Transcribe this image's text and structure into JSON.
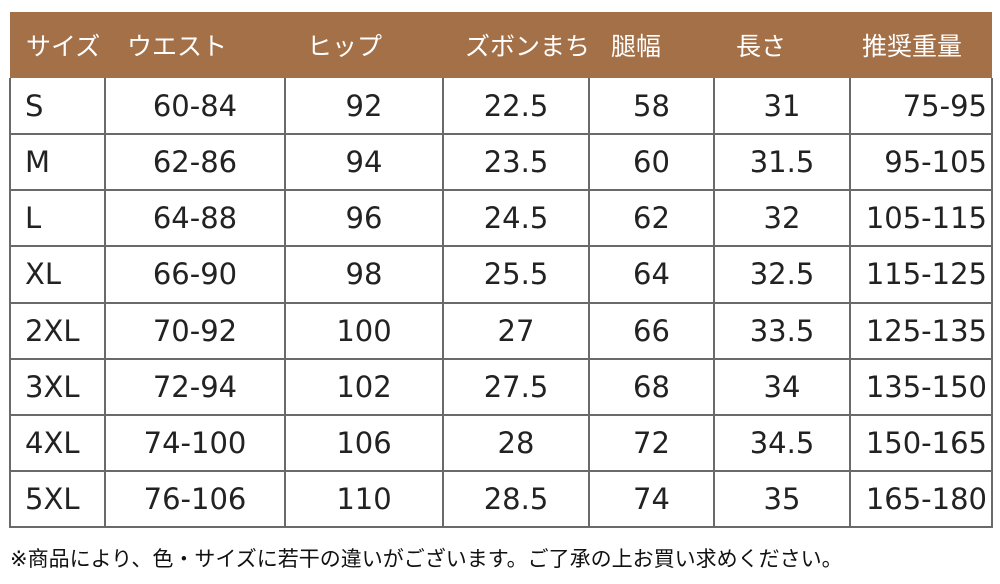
{
  "table": {
    "headers": [
      "サイズ",
      "ウエスト",
      "ヒップ",
      "ズボンまち",
      "腿幅",
      "長さ",
      "推奨重量"
    ],
    "rows": [
      [
        "S",
        "60-84",
        "92",
        "22.5",
        "58",
        "31",
        "75-95"
      ],
      [
        "M",
        "62-86",
        "94",
        "23.5",
        "60",
        "31.5",
        "95-105"
      ],
      [
        "L",
        "64-88",
        "96",
        "24.5",
        "62",
        "32",
        "105-115"
      ],
      [
        "XL",
        "66-90",
        "98",
        "25.5",
        "64",
        "32.5",
        "115-125"
      ],
      [
        "2XL",
        "70-92",
        "100",
        "27",
        "66",
        "33.5",
        "125-135"
      ],
      [
        "3XL",
        "72-94",
        "102",
        "27.5",
        "68",
        "34",
        "135-150"
      ],
      [
        "4XL",
        "74-100",
        "106",
        "28",
        "72",
        "34.5",
        "150-165"
      ],
      [
        "5XL",
        "76-106",
        "110",
        "28.5",
        "74",
        "35",
        "165-180"
      ]
    ]
  },
  "footnote": "※商品により、色・サイズに若干の違いがございます。ご了承の上お買い求めください。",
  "colors": {
    "header_bg": "#a47048",
    "header_text": "#ffffff",
    "grid_line": "#6a6a6a"
  }
}
